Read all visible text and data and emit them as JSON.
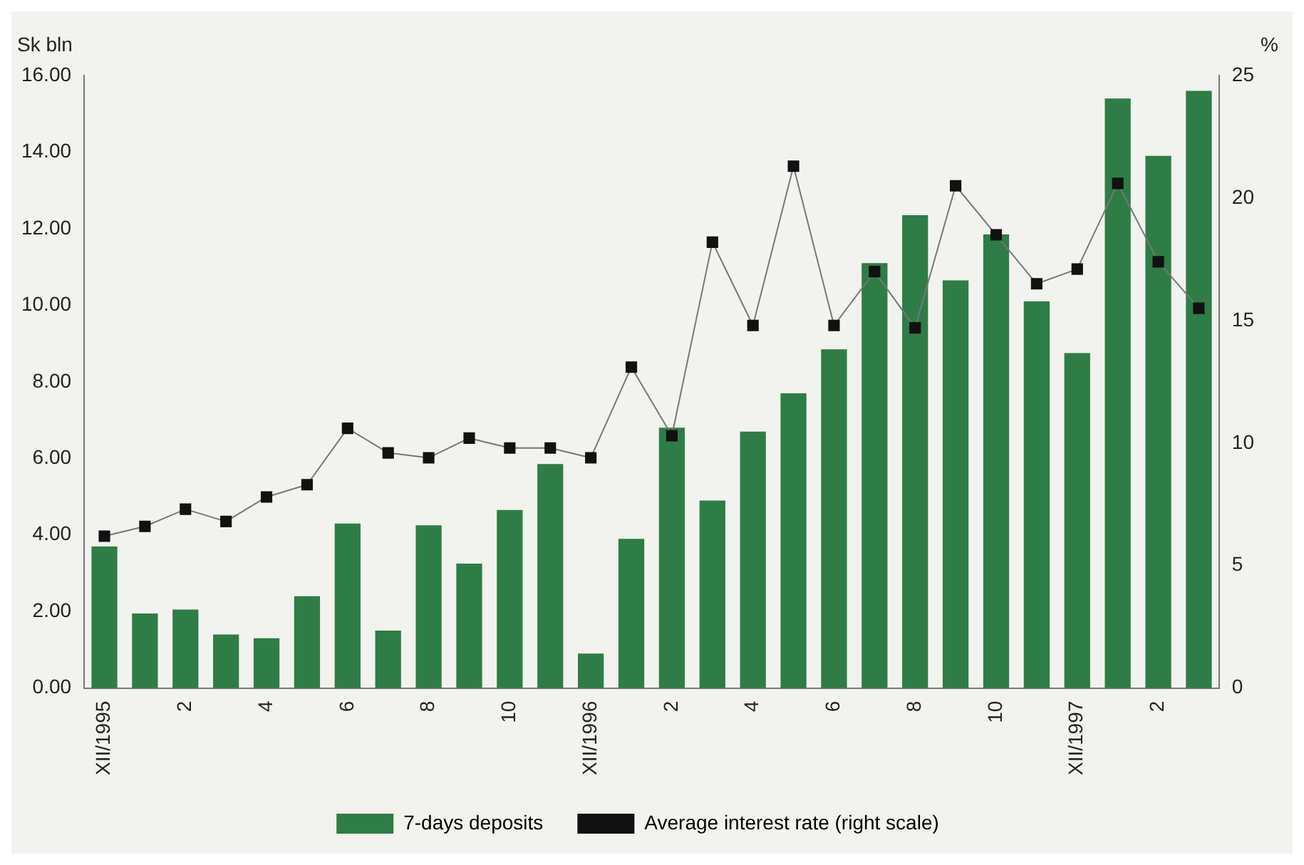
{
  "chart_data": {
    "type": "bar",
    "ylabel": "Sk bln",
    "y2label": "%",
    "categories": [
      "XII/1995",
      null,
      "2",
      null,
      "4",
      null,
      "6",
      null,
      "8",
      null,
      "10",
      null,
      "XII/1996",
      null,
      "2",
      null,
      "4",
      null,
      "6",
      null,
      "8",
      null,
      "10",
      null,
      "XII/1997",
      null,
      "2",
      null
    ],
    "series": [
      {
        "name": "7-days deposits",
        "type": "bar",
        "color": "#2e7d46",
        "values": [
          3.7,
          1.95,
          2.05,
          1.4,
          1.3,
          2.4,
          4.3,
          1.5,
          4.25,
          3.25,
          4.65,
          5.85,
          0.9,
          3.9,
          6.8,
          4.9,
          6.7,
          7.7,
          8.85,
          11.1,
          12.35,
          10.65,
          11.85,
          10.1,
          8.75,
          15.4,
          13.9,
          15.6
        ]
      },
      {
        "name": "Average interest rate (right scale)",
        "type": "line",
        "axis": "y2",
        "color": "#111111",
        "marker": "square",
        "line_style": "solid",
        "values": [
          6.2,
          6.6,
          7.3,
          6.8,
          7.8,
          8.3,
          10.6,
          9.6,
          9.4,
          10.2,
          9.8,
          9.8,
          9.4,
          13.1,
          10.3,
          18.2,
          14.8,
          21.3,
          14.8,
          17.0,
          14.7,
          20.5,
          18.5,
          16.5,
          17.1,
          20.6,
          17.4,
          15.5
        ]
      }
    ],
    "ylim": [
      0,
      16
    ],
    "yticks": [
      {
        "value": 0,
        "label": "0.00"
      },
      {
        "value": 2,
        "label": "2.00"
      },
      {
        "value": 4,
        "label": "4.00"
      },
      {
        "value": 6,
        "label": "6.00"
      },
      {
        "value": 8,
        "label": "8.00"
      },
      {
        "value": 10,
        "label": "10.00"
      },
      {
        "value": 12,
        "label": "12.00"
      },
      {
        "value": 14,
        "label": "14.00"
      },
      {
        "value": 16,
        "label": "16.00"
      }
    ],
    "y2lim": [
      0,
      25
    ],
    "y2ticks": [
      0,
      5,
      10,
      15,
      20,
      25
    ],
    "grid": false,
    "legend": "bottom"
  }
}
